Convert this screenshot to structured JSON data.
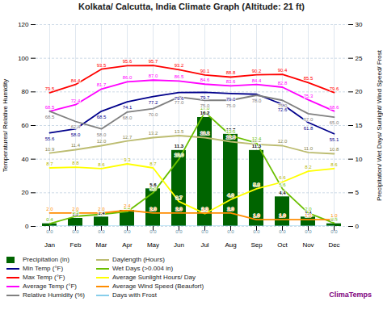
{
  "chart_data": {
    "type": "line",
    "title": "Kolkata/ Calcutta, India Climate Graph (Altitude: 21 ft)",
    "categories": [
      "Jan",
      "Feb",
      "Mar",
      "Apr",
      "May",
      "Jun",
      "Jul",
      "Aug",
      "Sep",
      "Oct",
      "Nov",
      "Dec"
    ],
    "y_label": "Temperatures/ Relative Humidity",
    "y2_label": "Precipitation/ Wet Days/ Sunlight/ Wind Speed/ Frost",
    "ylim": [
      0,
      120
    ],
    "yticks": [
      0,
      20,
      40,
      60,
      80,
      100,
      120
    ],
    "y2lim": [
      0,
      30
    ],
    "y2ticks": [
      0,
      5,
      10,
      15,
      20,
      25,
      30
    ],
    "grid": true,
    "data_labels": true,
    "legend": "bottom",
    "annotations": [
      {
        "text": "ClimaTemps",
        "color": "purple"
      }
    ],
    "series": [
      {
        "name": "Precipitation (in)",
        "type": "bar",
        "axis": "y2",
        "color": "#006400",
        "values": [
          0.4,
          1.2,
          1.4,
          2.4,
          5.6,
          11.3,
          16.2,
          13.7,
          11.3,
          4.4,
          1.4,
          0.4
        ]
      },
      {
        "name": "Min Temp (°F)",
        "axis": "y",
        "color": "#00008B",
        "values": [
          55.6,
          58.0,
          68.5,
          74.1,
          77.2,
          79.6,
          79.7,
          79.0,
          78.6,
          72.6,
          61.8,
          55.1
        ],
        "value_labels": [
          "55.6",
          "58.0",
          "68.5",
          "74.1",
          "77.2",
          "79.6",
          "79.7",
          "79.0",
          "78.6",
          "72.6",
          "61.8",
          "55.1"
        ]
      },
      {
        "name": "Max Temp (°F)",
        "axis": "y",
        "color": "#FF0000",
        "values": [
          79.5,
          84.4,
          93.5,
          95.6,
          95.7,
          93.2,
          90.1,
          88.8,
          90.2,
          90.4,
          85.5,
          79.6
        ]
      },
      {
        "name": "Average Temp (°F)",
        "axis": "y",
        "color": "#FF00FF",
        "values": [
          68.5,
          72.4,
          81.7,
          86.0,
          87.0,
          86.5,
          84.6,
          83.6,
          84.4,
          82.8,
          75.3,
          68.6
        ],
        "value_labels": [
          "68.5",
          "72.4",
          "81.7",
          "86.0",
          "87.0",
          "86.5",
          "84.6",
          "83.6",
          "84.4",
          "82.8",
          "75.3",
          "68.6"
        ]
      },
      {
        "name": "Relative Humidity (%)",
        "axis": "y",
        "color": "#808080",
        "values": [
          68.5,
          62.4,
          58.0,
          68.0,
          70.0,
          77.0,
          75.0,
          75.0,
          78.0,
          75.0,
          67.0,
          65.0
        ],
        "value_labels": [
          "68.5",
          "62.4",
          "58.0",
          "68.0",
          "70.0",
          "77.0",
          "75.0",
          "75.0",
          "78.0",
          "75.0",
          "67.0",
          "65.0"
        ]
      },
      {
        "name": "Daylength (Hours)",
        "axis": "y2",
        "color": "#BCBC70",
        "values": [
          10.9,
          11.4,
          12.0,
          12.7,
          13.2,
          13.5,
          13.2,
          12.6,
          12.2,
          12.0,
          11.0,
          10.8
        ],
        "value_labels": [
          "10.9",
          "11.4",
          "12.0",
          "12.7",
          "13.2",
          "13.5",
          "13.2",
          "12.6",
          "12.2",
          "12.0",
          "11.0",
          "10.8"
        ]
      },
      {
        "name": "Wet Days (>0.004 in)",
        "axis": "y2",
        "color": "#6ABF00",
        "values": [
          0.4,
          1.5,
          1.8,
          2.2,
          5.0,
          10.0,
          17.0,
          13.5,
          12.4,
          5.6,
          2.0,
          0.5
        ],
        "value_labels": [
          "0.4",
          "1.5",
          "1.8",
          "2.2",
          "5.0",
          "10.0",
          "17.0",
          "13.5",
          "12.4",
          "5.6",
          "2.0",
          "0.5"
        ]
      },
      {
        "name": "Average Sunlight Hours/ Day",
        "axis": "y2",
        "color": "#FFFF00",
        "values": [
          8.7,
          8.8,
          8.6,
          9.3,
          8.7,
          3.7,
          1.9,
          4.0,
          5.6,
          6.6,
          8.2,
          8.6
        ],
        "value_labels": [
          "8.7",
          "8.8",
          "8.6",
          "9.3",
          "8.7",
          "3.7",
          "1.9",
          "4.0",
          "5.6",
          "6.6",
          "8.2",
          "8.6"
        ]
      },
      {
        "name": "Average Wind Speed (Beaufort)",
        "axis": "y2",
        "color": "#FF8C00",
        "values": [
          2.0,
          2.0,
          2.0,
          2.4,
          2.0,
          2.0,
          2.0,
          2.0,
          1.0,
          1.0,
          1.0,
          1.0
        ],
        "value_labels": [
          "2.0",
          "2.0",
          "2.0",
          "2.4",
          "2.0",
          "2.0",
          "2.0",
          "2.0",
          "1.0",
          "1.0",
          "1.0",
          "1.0"
        ]
      },
      {
        "name": "Days with Frost",
        "axis": "y2",
        "color": "#87CEEB",
        "values": [
          0.0,
          0.0,
          0.0,
          0.0,
          0.0,
          0.0,
          0.0,
          0.0,
          0.0,
          0.0,
          0.0,
          0.0
        ],
        "value_labels": [
          "0.0",
          "0.0",
          "0.0",
          "0.0",
          "0.0",
          "0.0",
          "0.0",
          "0.0",
          "0.0",
          "0.0",
          "0.0",
          "0.0"
        ]
      }
    ]
  }
}
